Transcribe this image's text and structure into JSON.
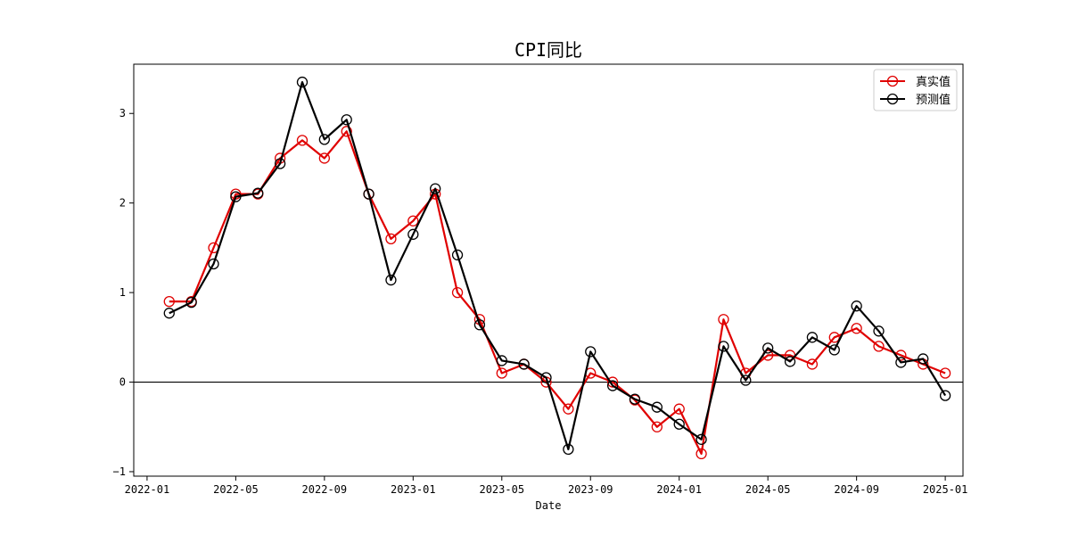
{
  "chart_data": {
    "type": "line",
    "title": "CPI同比",
    "xlabel": "Date",
    "ylabel": "",
    "x_ticks": [
      "2022-01",
      "2022-05",
      "2022-09",
      "2023-01",
      "2023-05",
      "2023-09",
      "2024-01",
      "2024-05",
      "2024-09",
      "2025-01"
    ],
    "y_ticks": [
      "−1",
      "0",
      "1",
      "2",
      "3"
    ],
    "xlim": [
      "2021-12",
      "2025-02"
    ],
    "ylim": [
      -1.05,
      3.55
    ],
    "zero_line": true,
    "grid": false,
    "legend_position": "top-right",
    "x": [
      "2022-02",
      "2022-03",
      "2022-04",
      "2022-05",
      "2022-06",
      "2022-07",
      "2022-08",
      "2022-09",
      "2022-10",
      "2022-11",
      "2022-12",
      "2023-01",
      "2023-02",
      "2023-03",
      "2023-04",
      "2023-05",
      "2023-06",
      "2023-07",
      "2023-08",
      "2023-09",
      "2023-10",
      "2023-11",
      "2023-12",
      "2024-01",
      "2024-02",
      "2024-03",
      "2024-04",
      "2024-05",
      "2024-06",
      "2024-07",
      "2024-08",
      "2024-09",
      "2024-10",
      "2024-11",
      "2024-12",
      "2025-01"
    ],
    "series": [
      {
        "name": "真实值",
        "color": "#e00000",
        "values": [
          0.9,
          0.9,
          1.5,
          2.1,
          2.1,
          2.5,
          2.7,
          2.5,
          2.8,
          2.1,
          1.6,
          1.8,
          2.1,
          1.0,
          0.7,
          0.1,
          0.2,
          0.0,
          -0.3,
          0.1,
          0.0,
          -0.2,
          -0.5,
          -0.3,
          -0.8,
          0.7,
          0.1,
          0.3,
          0.3,
          0.2,
          0.5,
          0.6,
          0.4,
          0.3,
          0.2,
          0.1
        ]
      },
      {
        "name": "预测值",
        "color": "#000000",
        "values": [
          0.77,
          0.89,
          1.32,
          2.07,
          2.11,
          2.44,
          3.35,
          2.71,
          2.93,
          2.1,
          1.14,
          1.65,
          2.16,
          1.42,
          0.64,
          0.24,
          0.2,
          0.05,
          -0.75,
          0.34,
          -0.04,
          -0.19,
          -0.28,
          -0.47,
          -0.64,
          0.4,
          0.02,
          0.38,
          0.23,
          0.5,
          0.36,
          0.85,
          0.57,
          0.22,
          0.26,
          -0.15
        ]
      }
    ]
  }
}
